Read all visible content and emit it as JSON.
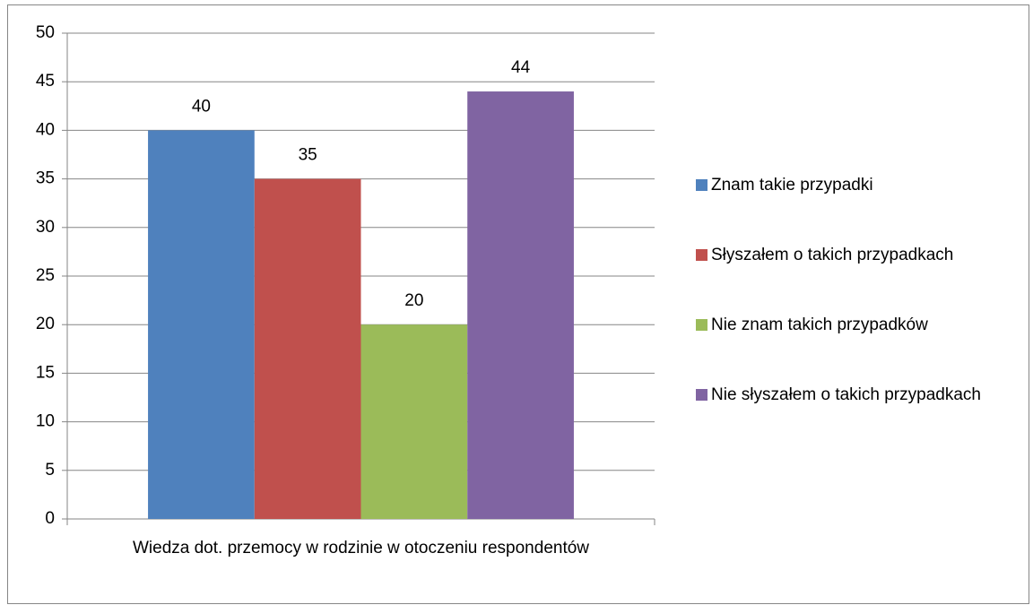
{
  "chart_data": {
    "type": "bar",
    "categories": [
      "Wiedza dot. przemocy w rodzinie w otoczeniu respondentów"
    ],
    "series": [
      {
        "name": "Znam takie przypadki",
        "color": "#4f81bd",
        "values": [
          40
        ]
      },
      {
        "name": "Słyszałem o takich przypadkach",
        "color": "#c0504d",
        "values": [
          35
        ]
      },
      {
        "name": "Nie znam takich przypadków",
        "color": "#9bbb59",
        "values": [
          20
        ]
      },
      {
        "name": "Nie słyszałem o takich przypadkach",
        "color": "#8064a2",
        "values": [
          44
        ]
      }
    ],
    "ylim": [
      0,
      50
    ],
    "yticks": [
      0,
      5,
      10,
      15,
      20,
      25,
      30,
      35,
      40,
      45,
      50
    ],
    "grid": true,
    "legend": "right"
  }
}
